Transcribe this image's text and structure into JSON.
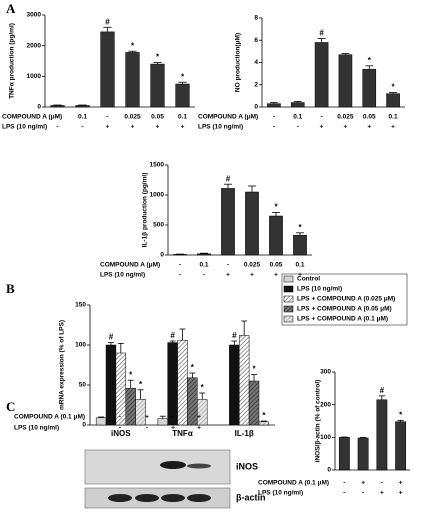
{
  "panels": [
    "A",
    "B",
    "C"
  ],
  "chart_data": [
    {
      "type": "bar",
      "y_label": "TNFα production (pg/ml)",
      "color": "#333333",
      "category_rows": [
        {
          "label": "COMPOUND A (μM)",
          "values": [
            "-",
            "0.1",
            "-",
            "0.025",
            "0.05",
            "0.1"
          ]
        },
        {
          "label": "LPS (10 ng/ml)",
          "values": [
            "-",
            "-",
            "+",
            "+",
            "+",
            "+"
          ]
        }
      ],
      "values": [
        50,
        50,
        2450,
        1780,
        1400,
        750
      ],
      "errors": [
        15,
        15,
        150,
        40,
        50,
        60
      ],
      "annotations": [
        null,
        null,
        "#",
        "*",
        "*",
        "*"
      ],
      "ylim": [
        0,
        3000
      ],
      "yticks": [
        0,
        1000,
        2000,
        3000
      ]
    },
    {
      "type": "bar",
      "y_label": "NO production(μM)",
      "color": "#333333",
      "category_rows": [
        {
          "label": "COMPOUND A (μM)",
          "values": [
            "-",
            "0.1",
            "-",
            "0.025",
            "0.05",
            "0.1"
          ]
        },
        {
          "label": "LPS (10 ng/ml)",
          "values": [
            "-",
            "-",
            "+",
            "+",
            "+",
            "+"
          ]
        }
      ],
      "values": [
        0.3,
        0.4,
        5.8,
        4.7,
        3.4,
        1.2
      ],
      "errors": [
        0.1,
        0.1,
        0.35,
        0.1,
        0.3,
        0.1
      ],
      "annotations": [
        null,
        null,
        "#",
        null,
        "*",
        "*"
      ],
      "ylim": [
        0,
        8
      ],
      "yticks": [
        0,
        2,
        4,
        6,
        8
      ]
    },
    {
      "type": "bar",
      "y_label": "IL-1β production (pg/ml)",
      "color": "#333333",
      "category_rows": [
        {
          "label": "COMPOUND A (μM)",
          "values": [
            "-",
            "0.1",
            "-",
            "0.025",
            "0.05",
            "0.1"
          ]
        },
        {
          "label": "LPS (10 ng/ml)",
          "values": [
            "-",
            "-",
            "+",
            "+",
            "+",
            "+"
          ]
        }
      ],
      "values": [
        10,
        20,
        1110,
        1050,
        650,
        330
      ],
      "errors": [
        5,
        10,
        70,
        100,
        60,
        40
      ],
      "annotations": [
        null,
        null,
        "#",
        null,
        "*",
        "*"
      ],
      "ylim": [
        0,
        1500
      ],
      "yticks": [
        0,
        500,
        1000,
        1500
      ]
    },
    {
      "type": "grouped-bar",
      "y_label": "mRNA expression (% of LPS)",
      "categories": [
        "iNOS",
        "TNFα",
        "IL-1β"
      ],
      "series": [
        {
          "name": "Control",
          "color": "#d4d4d4",
          "values": [
            9,
            8,
            null
          ],
          "errors": [
            1,
            3,
            null
          ],
          "annotations": [
            null,
            null,
            null
          ]
        },
        {
          "name": "LPS (10 ng/ml)",
          "color": "#111111",
          "values": [
            100,
            103,
            100
          ],
          "errors": [
            3,
            2,
            5
          ],
          "annotations": [
            "#",
            "#",
            "#"
          ]
        },
        {
          "name": "LPS + COMPOUND A (0.025 μM)",
          "color": "#ffffff",
          "hatch": "#555555",
          "values": [
            90,
            106,
            112
          ],
          "errors": [
            12,
            14,
            18
          ],
          "annotations": [
            null,
            null,
            null
          ]
        },
        {
          "name": "LPS + COMPOUND A (0.05 μM)",
          "color": "#777777",
          "hatch": "#222222",
          "values": [
            46,
            59,
            55
          ],
          "errors": [
            10,
            6,
            8
          ],
          "annotations": [
            "*",
            "*",
            "*"
          ]
        },
        {
          "name": "LPS + COMPOUND A (0.1 μM)",
          "color": "#e6e6e6",
          "hatch": "#999999",
          "values": [
            32,
            32,
            4
          ],
          "errors": [
            12,
            8,
            1
          ],
          "annotations": [
            "*",
            "*",
            "*"
          ]
        }
      ],
      "ylim": [
        0,
        150
      ],
      "yticks": [
        0,
        50,
        100,
        150
      ]
    },
    {
      "type": "bar",
      "y_label": "iNOS/β-actin (% of control)",
      "color": "#333333",
      "category_rows": [
        {
          "label": "COMPOUND A (0.1 μM)",
          "values": [
            "-",
            "+",
            "-",
            "+"
          ]
        },
        {
          "label": "LPS (10 ng/ml)",
          "values": [
            "-",
            "-",
            "+",
            "+"
          ]
        }
      ],
      "values": [
        100,
        98,
        215,
        148
      ],
      "errors": [
        1,
        2,
        12,
        4
      ],
      "annotations": [
        null,
        null,
        "#",
        "*"
      ],
      "ylim": [
        0,
        300
      ],
      "yticks": [
        0,
        100,
        200,
        300
      ]
    }
  ],
  "blot": {
    "rows": [
      {
        "label": "COMPOUND A (0.1 μM)",
        "values": [
          "-",
          "+",
          "-",
          "+"
        ]
      },
      {
        "label": "LPS (10 ng/ml)",
        "values": [
          "-",
          "-",
          "+",
          "+"
        ]
      }
    ],
    "bands": [
      "iNOS",
      "β-actin"
    ]
  }
}
